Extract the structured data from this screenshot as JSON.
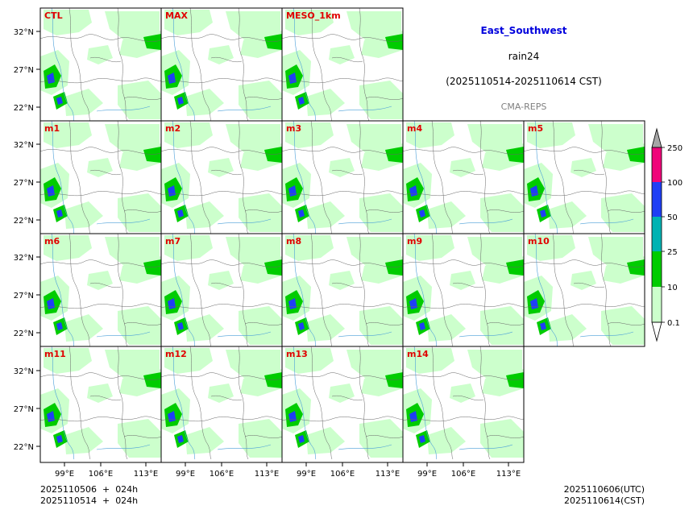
{
  "header": {
    "region": "East_Southwest",
    "variable": "rain24",
    "period": "(2025110514-2025110614 CST)",
    "system": "CMA-REPS"
  },
  "panels": [
    "CTL",
    "MAX",
    "MESO_1km",
    "m1",
    "m2",
    "m3",
    "m4",
    "m5",
    "m6",
    "m7",
    "m8",
    "m9",
    "m10",
    "m11",
    "m12",
    "m13",
    "m14"
  ],
  "axes": {
    "lat_labels": [
      "32°N",
      "27°N",
      "22°N"
    ],
    "lon_labels": [
      "99°E",
      "106°E",
      "113°E"
    ]
  },
  "colorbar": {
    "levels": [
      "0.1",
      "10",
      "25",
      "50",
      "100",
      "250"
    ],
    "colors": [
      "#ffffff",
      "#ccffcc",
      "#00cc00",
      "#00b3b3",
      "#1f3ff5",
      "#f0057a",
      "#a6a6a6"
    ]
  },
  "footer": {
    "init_line1": "2025110506  +  024h",
    "init_line2": "2025110514  +  024h",
    "valid_utc": "2025110606(UTC)",
    "valid_cst": "2025110614(CST)"
  },
  "colors": {
    "label_red": "#e00000",
    "title_blue": "#0000dd",
    "grey_text": "#808080",
    "river": "#4a9fd8",
    "border": "#666666"
  }
}
